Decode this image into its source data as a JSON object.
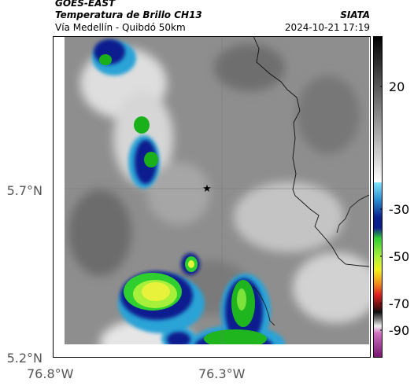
{
  "header": {
    "satellite": "GOES-EAST",
    "product": "Temperatura de Brillo CH13",
    "region": "Vía Medellín - Quibdó 50km",
    "organization": "SIATA",
    "timestamp": "2024-10-21 17:19"
  },
  "axes": {
    "lat_labels": [
      "5.7°N",
      "5.2°N"
    ],
    "lon_labels": [
      "76.8°W",
      "76.3°W"
    ]
  },
  "colorbar": {
    "labels": [
      "20",
      "-30",
      "-50",
      "-70",
      "-90"
    ]
  },
  "map": {
    "marker_icon": "star-icon"
  }
}
